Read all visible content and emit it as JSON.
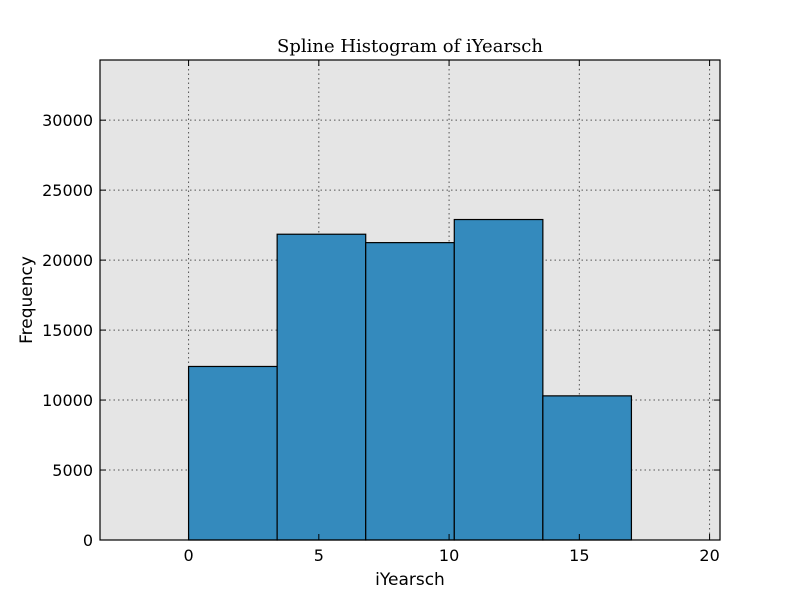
{
  "chart_data": {
    "type": "bar",
    "title": "Spline Histogram of iYearsch",
    "xlabel": "iYearsch",
    "ylabel": "Frequency",
    "xlim": [
      -3.4,
      20.4
    ],
    "ylim": [
      0,
      34300
    ],
    "xticks": [
      0,
      5,
      10,
      15,
      20
    ],
    "yticks": [
      0,
      5000,
      10000,
      15000,
      20000,
      25000,
      30000
    ],
    "grid": true,
    "bins": [
      {
        "start": 0.0,
        "end": 3.4,
        "value": 12400
      },
      {
        "start": 3.4,
        "end": 6.8,
        "value": 21850
      },
      {
        "start": 6.8,
        "end": 10.2,
        "value": 21250
      },
      {
        "start": 10.2,
        "end": 13.6,
        "value": 22900
      },
      {
        "start": 13.6,
        "end": 17.0,
        "value": 10300
      }
    ],
    "colors": {
      "bar": "#348abd",
      "plot_background": "#e5e5e5"
    }
  }
}
